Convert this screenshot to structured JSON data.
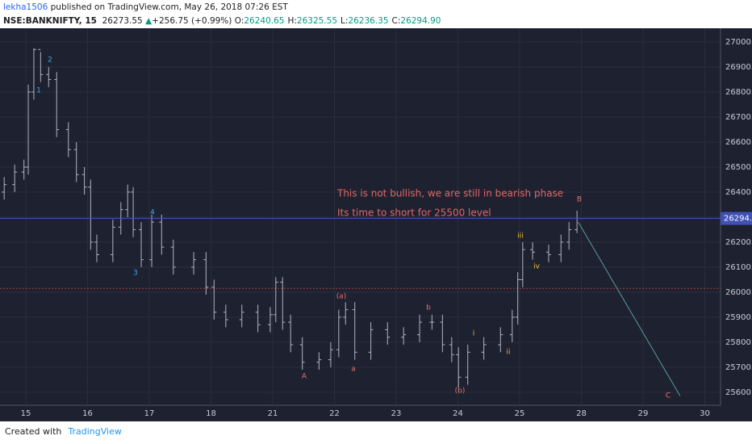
{
  "chart_data": {
    "type": "ohlc",
    "header": {
      "author": "lekha1506",
      "published": "published on TradingView.com, May 26, 2018 07:26 EST",
      "symbol": "NSE:BANKNIFTY, 15",
      "last": "26273.55",
      "arrow": "▲",
      "change": "+256.75 (+0.99%)",
      "ohlc": [
        {
          "label": "O:",
          "value": "26240.65"
        },
        {
          "label": "H:",
          "value": "26325.55"
        },
        {
          "label": "L:",
          "value": "26236.35"
        },
        {
          "label": "C:",
          "value": "26294.90"
        }
      ]
    },
    "color": "#b2b5be",
    "x": [
      -0.35,
      -0.18,
      -0.03,
      0.04,
      0.13,
      0.24,
      0.37,
      0.5,
      0.69,
      0.82,
      0.95,
      1.05,
      1.15,
      1.41,
      1.54,
      1.65,
      1.74,
      1.87,
      2.04,
      2.2,
      2.39,
      2.72,
      2.92,
      3.05,
      3.24,
      3.5,
      3.76,
      3.96,
      4.05,
      4.16,
      4.29,
      4.48,
      4.75,
      4.94,
      5.07,
      5.18,
      5.33,
      5.59,
      5.86,
      6.12,
      6.38,
      6.58,
      6.75,
      6.9,
      7.01,
      7.16,
      7.42,
      7.69,
      7.88,
      7.97,
      8.05,
      8.21,
      8.47,
      8.67,
      8.8,
      8.93
    ],
    "open": [
      26400,
      26430,
      26480,
      26500,
      26800,
      26970,
      26870,
      26850,
      26650,
      26570,
      26470,
      26420,
      26200,
      26150,
      26260,
      26330,
      26400,
      26250,
      26130,
      26280,
      26180,
      26100,
      26130,
      26020,
      25920,
      25890,
      25920,
      25870,
      25910,
      26040,
      25880,
      25790,
      25720,
      25730,
      25770,
      25900,
      25930,
      25760,
      25850,
      25820,
      25830,
      25880,
      25880,
      25790,
      25750,
      25660,
      25760,
      25790,
      25830,
      25900,
      26050,
      26170,
      26160,
      26150,
      26200,
      26250
    ],
    "high": [
      26460,
      26510,
      26530,
      26830,
      26975,
      26960,
      26900,
      26880,
      26680,
      26600,
      26500,
      26450,
      26230,
      26290,
      26360,
      26430,
      26420,
      26280,
      26310,
      26310,
      26210,
      26160,
      26160,
      26050,
      25950,
      25950,
      25950,
      25940,
      26060,
      26060,
      25910,
      25820,
      25760,
      25800,
      25930,
      25960,
      25960,
      25880,
      25880,
      25860,
      25910,
      25910,
      25910,
      25820,
      25780,
      25790,
      25820,
      25860,
      25930,
      26080,
      26200,
      26200,
      26190,
      26230,
      26280,
      26325.55
    ],
    "low": [
      26370,
      26400,
      26450,
      26470,
      26770,
      26840,
      26820,
      26620,
      26540,
      26440,
      26390,
      26170,
      26120,
      26120,
      26230,
      26300,
      26220,
      26100,
      26100,
      26150,
      26070,
      26070,
      25990,
      25890,
      25860,
      25860,
      25840,
      25840,
      25880,
      25850,
      25760,
      25690,
      25690,
      25700,
      25740,
      25870,
      25730,
      25730,
      25790,
      25790,
      25800,
      25850,
      25760,
      25720,
      25620,
      25630,
      25730,
      25760,
      25800,
      25870,
      26020,
      26130,
      26120,
      26120,
      26170,
      26236.35
    ],
    "close": [
      26430,
      26480,
      26500,
      26800,
      26970,
      26870,
      26850,
      26650,
      26570,
      26470,
      26420,
      26200,
      26150,
      26260,
      26330,
      26400,
      26250,
      26130,
      26280,
      26180,
      26100,
      26130,
      26020,
      25920,
      25890,
      25920,
      25870,
      25910,
      26040,
      25880,
      25790,
      25720,
      25730,
      25770,
      25900,
      25930,
      25760,
      25850,
      25820,
      25830,
      25880,
      25880,
      25790,
      25750,
      25660,
      25760,
      25790,
      25830,
      25900,
      26050,
      26170,
      26160,
      26150,
      26200,
      26250,
      26294.9
    ],
    "xlim": [
      -0.418,
      11.255
    ],
    "xticks": [
      {
        "value": 0,
        "label": "15"
      },
      {
        "value": 1,
        "label": "16"
      },
      {
        "value": 2,
        "label": "17"
      },
      {
        "value": 3,
        "label": "18"
      },
      {
        "value": 4,
        "label": "21"
      },
      {
        "value": 5,
        "label": "22"
      },
      {
        "value": 6,
        "label": "23"
      },
      {
        "value": 7,
        "label": "24"
      },
      {
        "value": 8,
        "label": "25"
      },
      {
        "value": 9,
        "label": "28"
      },
      {
        "value": 10,
        "label": "29"
      },
      {
        "value": 11,
        "label": "30"
      }
    ],
    "ylim": [
      25548,
      27055
    ],
    "yticks": [
      {
        "value": 25600,
        "label": "25600.00"
      },
      {
        "value": 25700,
        "label": "25700.00"
      },
      {
        "value": 25800,
        "label": "25800.00"
      },
      {
        "value": 25900,
        "label": "25900.00"
      },
      {
        "value": 26000,
        "label": "26000.00"
      },
      {
        "value": 26100,
        "label": "26100.00"
      },
      {
        "value": 26200,
        "label": "26200.00"
      },
      {
        "value": 26300,
        "label": "26300.00"
      },
      {
        "value": 26400,
        "label": "26400.00"
      },
      {
        "value": 26500,
        "label": "26500.00"
      },
      {
        "value": 26600,
        "label": "26600.00"
      },
      {
        "value": 26700,
        "label": "26700.00"
      },
      {
        "value": 26800,
        "label": "26800.00"
      },
      {
        "value": 26900,
        "label": "26900.00"
      },
      {
        "value": 27000,
        "label": "27000.00"
      }
    ],
    "grid": true,
    "last_price": {
      "value": 26294.9,
      "label": "26294.90",
      "color": "#3f51b5"
    },
    "hline": {
      "value": 26015,
      "color": "#b03a3a"
    },
    "trendline": {
      "x": [
        8.95,
        10.6
      ],
      "y": [
        26280,
        25585
      ],
      "color": "#5b9aa0"
    },
    "annotations": [
      {
        "text": "This is not bullish, we are still in bearish phase",
        "color": "#e06666"
      },
      {
        "text": "Its time to short for 25500 level",
        "color": "#e06666"
      },
      {
        "text": "1",
        "color": "#42a5f5"
      },
      {
        "text": "2",
        "color": "#42a5f5"
      },
      {
        "text": "3",
        "color": "#42a5f5"
      },
      {
        "text": "4",
        "color": "#42a5f5"
      },
      {
        "text": "(a)",
        "color": "#e57373"
      },
      {
        "text": "A",
        "color": "#e57373"
      },
      {
        "text": "a",
        "color": "#e57373"
      },
      {
        "text": "b",
        "color": "#e57373"
      },
      {
        "text": "(b)",
        "color": "#e57373"
      },
      {
        "text": "B",
        "color": "#e57373"
      },
      {
        "text": "C",
        "color": "#e57373"
      },
      {
        "text": "i",
        "color": "#f0c040"
      },
      {
        "text": "ii",
        "color": "#f0c040"
      },
      {
        "text": "iii",
        "color": "#f0c040"
      },
      {
        "text": "iv",
        "color": "#f0c040"
      }
    ],
    "footer": {
      "created": "Created with",
      "brand": "TradingView"
    }
  }
}
